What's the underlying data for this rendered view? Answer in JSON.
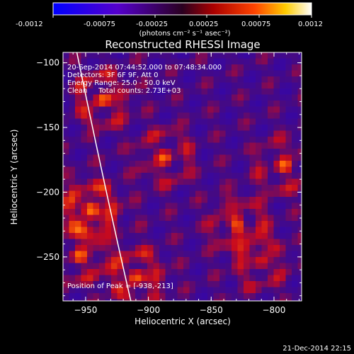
{
  "colorbar": {
    "ticks": [
      "-0.0012",
      "-0.00075",
      "-0.00025",
      "0.00025",
      "0.00075",
      "0.0012"
    ],
    "units": "(photons cm⁻² s⁻¹ asec⁻²)"
  },
  "chart_data": {
    "type": "heatmap",
    "title": "Reconstructed RHESSI Image",
    "xlabel": "Heliocentric X (arcsec)",
    "ylabel": "Heliocentric Y (arcsec)",
    "xlim": [
      -968,
      -778
    ],
    "ylim": [
      -284,
      -92
    ],
    "xticks": [
      -950,
      -900,
      -850,
      -800
    ],
    "yticks": [
      -100,
      -150,
      -200,
      -250
    ],
    "x_tick_labels": [
      "−950",
      "−900",
      "−850",
      "−800"
    ],
    "y_tick_labels": [
      "−100",
      "−150",
      "−200",
      "−250"
    ],
    "colorbar_range": [
      -0.0012,
      0.0012
    ],
    "info_lines": [
      "20-Sep-2014 07:44:52.000 to 07:48:34.000",
      "Detectors: 3F 6F 9F, Att 0",
      "Energy Range: 25.0 - 50.0 keV",
      "Clean     Total counts: 2.73E+03"
    ],
    "peak_label": "Position of Peak = [-938,-213]",
    "peak_position": [
      -938,
      -213
    ],
    "limb_points": [
      [
        -957,
        -92
      ],
      [
        -934,
        -200
      ],
      [
        -914,
        -284
      ]
    ],
    "sources": [
      {
        "x": -946,
        "y": -213,
        "strength": 1.0
      },
      {
        "x": -937,
        "y": -128,
        "strength": 0.75
      },
      {
        "x": -910,
        "y": -265,
        "strength": 0.8
      },
      {
        "x": -887,
        "y": -173,
        "strength": 0.6
      },
      {
        "x": -829,
        "y": -225,
        "strength": 0.7
      },
      {
        "x": -792,
        "y": -180,
        "strength": 0.6
      },
      {
        "x": -810,
        "y": -255,
        "strength": 0.55
      },
      {
        "x": -955,
        "y": -250,
        "strength": 0.6
      }
    ]
  },
  "footer": {
    "timestamp": "21-Dec-2014 22:15"
  },
  "colors": {
    "background": "#000000",
    "foreground": "#ffffff"
  }
}
